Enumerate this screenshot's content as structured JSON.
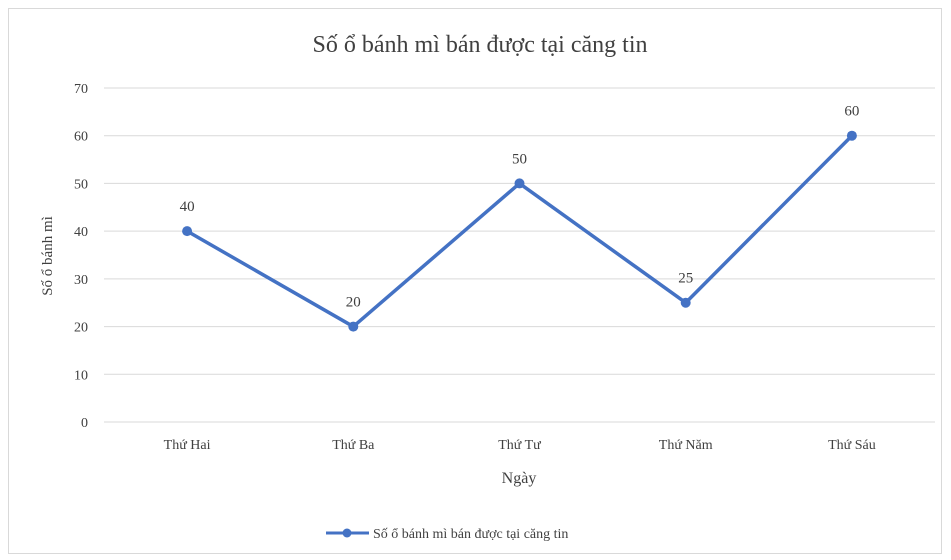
{
  "chart_data": {
    "type": "line",
    "title": "Số ổ bánh mì bán được tại căng tin",
    "xlabel": "Ngày",
    "ylabel": "Số ổ bánh mì",
    "categories": [
      "Thứ Hai",
      "Thứ Ba",
      "Thứ Tư",
      "Thứ Năm",
      "Thứ Sáu"
    ],
    "series": [
      {
        "name": "Số ổ bánh mì bán được tại căng tin",
        "values": [
          40,
          20,
          50,
          25,
          60
        ],
        "color": "#4472c4"
      }
    ],
    "ylim": [
      0,
      70
    ],
    "yticks": [
      "0",
      "10",
      "20",
      "30",
      "40",
      "50",
      "60",
      "70"
    ],
    "data_labels": [
      "40",
      "20",
      "50",
      "25",
      "60"
    ],
    "grid": true,
    "legend_position": "bottom",
    "gridline_color": "#d9d9d9",
    "text_color": "#404040"
  }
}
